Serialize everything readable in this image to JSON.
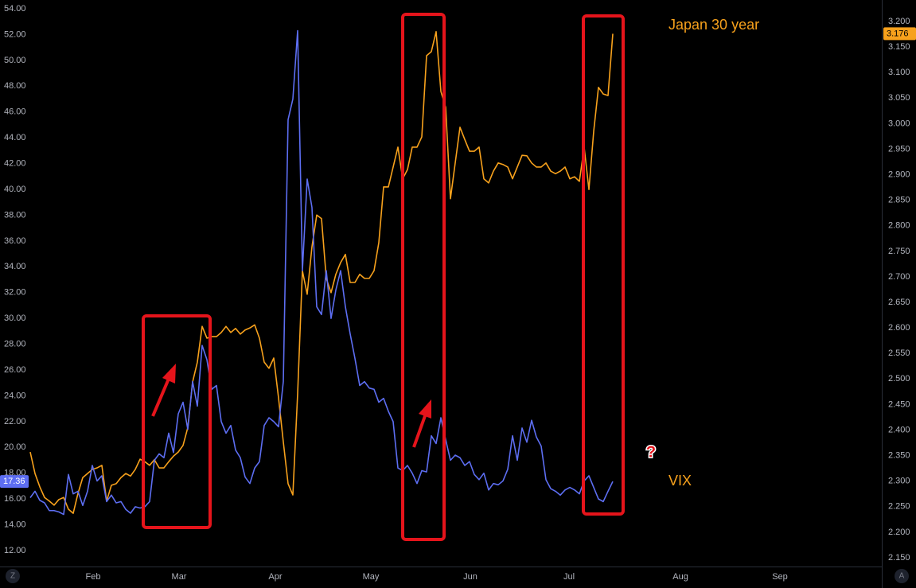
{
  "chart_data": {
    "type": "line",
    "x": [
      0,
      1,
      2,
      3,
      4,
      5,
      6,
      7,
      8,
      9,
      10,
      11,
      12,
      13,
      14,
      15,
      16,
      17,
      18,
      19,
      20,
      21,
      22,
      23,
      24,
      25,
      26,
      27,
      28,
      29,
      30,
      31,
      32,
      33,
      34,
      35,
      36,
      37,
      38,
      39,
      40,
      41,
      42,
      43,
      44,
      45,
      46,
      47,
      48,
      49,
      50,
      51,
      52,
      53,
      54,
      55,
      56,
      57,
      58,
      59,
      60,
      61,
      62,
      63,
      64,
      65,
      66,
      67,
      68,
      69,
      70,
      71,
      72,
      73,
      74,
      75,
      76,
      77,
      78,
      79,
      80,
      81,
      82,
      83,
      84,
      85,
      86,
      87,
      88,
      89,
      90,
      91,
      92,
      93,
      94,
      95,
      96,
      97,
      98,
      99,
      100,
      101,
      102,
      103,
      104,
      105,
      106,
      107,
      108,
      109,
      110,
      111,
      112,
      113,
      114,
      115,
      116,
      117,
      118,
      119,
      120,
      121,
      122
    ],
    "xlim": [
      -6.33,
      178.33
    ],
    "xticks": [
      {
        "value": 13.17,
        "label": "Feb"
      },
      {
        "value": 31.17,
        "label": "Mar"
      },
      {
        "value": 51.33,
        "label": "Apr"
      },
      {
        "value": 71.33,
        "label": "May"
      },
      {
        "value": 92.17,
        "label": "Jun"
      },
      {
        "value": 112.83,
        "label": "Jul"
      },
      {
        "value": 136.17,
        "label": "Aug"
      },
      {
        "value": 157,
        "label": "Sep"
      }
    ],
    "ylim": [
      12,
      54
    ],
    "yticks": [
      {
        "value": 12,
        "label": "12.00"
      },
      {
        "value": 14,
        "label": "14.00"
      },
      {
        "value": 16,
        "label": "16.00"
      },
      {
        "value": 18,
        "label": "18.00"
      },
      {
        "value": 20,
        "label": "20.00"
      },
      {
        "value": 22,
        "label": "22.00"
      },
      {
        "value": 24,
        "label": "24.00"
      },
      {
        "value": 26,
        "label": "26.00"
      },
      {
        "value": 28,
        "label": "28.00"
      },
      {
        "value": 30,
        "label": "30.00"
      },
      {
        "value": 32,
        "label": "32.00"
      },
      {
        "value": 34,
        "label": "34.00"
      },
      {
        "value": 36,
        "label": "36.00"
      },
      {
        "value": 38,
        "label": "38.00"
      },
      {
        "value": 40,
        "label": "40.00"
      },
      {
        "value": 42,
        "label": "42.00"
      },
      {
        "value": 44,
        "label": "44.00"
      },
      {
        "value": 46,
        "label": "46.00"
      },
      {
        "value": 48,
        "label": "48.00"
      },
      {
        "value": 50,
        "label": "50.00"
      },
      {
        "value": 52,
        "label": "52.00"
      },
      {
        "value": 54,
        "label": "54.00"
      }
    ],
    "y2lim": [
      2.15,
      3.2
    ],
    "y2ticks": [
      {
        "value": 2.15,
        "label": "2.150"
      },
      {
        "value": 2.2,
        "label": "2.200"
      },
      {
        "value": 2.25,
        "label": "2.250"
      },
      {
        "value": 2.3,
        "label": "2.300"
      },
      {
        "value": 2.35,
        "label": "2.350"
      },
      {
        "value": 2.4,
        "label": "2.400"
      },
      {
        "value": 2.45,
        "label": "2.450"
      },
      {
        "value": 2.5,
        "label": "2.500"
      },
      {
        "value": 2.55,
        "label": "2.550"
      },
      {
        "value": 2.6,
        "label": "2.600"
      },
      {
        "value": 2.65,
        "label": "2.650"
      },
      {
        "value": 2.7,
        "label": "2.700"
      },
      {
        "value": 2.75,
        "label": "2.750"
      },
      {
        "value": 2.8,
        "label": "2.800"
      },
      {
        "value": 2.85,
        "label": "2.850"
      },
      {
        "value": 2.9,
        "label": "2.900"
      },
      {
        "value": 2.95,
        "label": "2.950"
      },
      {
        "value": 3.0,
        "label": "3.000"
      },
      {
        "value": 3.05,
        "label": "3.050"
      },
      {
        "value": 3.1,
        "label": "3.100"
      },
      {
        "value": 3.15,
        "label": "3.150"
      },
      {
        "value": 3.2,
        "label": "3.200"
      }
    ],
    "grid": false,
    "series": [
      {
        "name": "VIX",
        "color": "#5d6ef2",
        "values": [
          16.1,
          16.6,
          15.9,
          15.7,
          15.1,
          15.1,
          15.0,
          14.8,
          17.9,
          16.4,
          16.6,
          15.5,
          16.6,
          18.6,
          17.4,
          17.8,
          15.8,
          16.3,
          15.7,
          15.8,
          15.2,
          14.9,
          15.4,
          15.3,
          15.4,
          15.8,
          19.0,
          19.5,
          19.2,
          21.1,
          19.6,
          22.6,
          23.5,
          21.4,
          25.1,
          23.2,
          27.9,
          26.8,
          24.5,
          24.8,
          22.0,
          21.1,
          21.7,
          19.8,
          19.2,
          17.7,
          17.2,
          18.4,
          18.9,
          21.7,
          22.3,
          22.0,
          21.6,
          25.1,
          45.4,
          47.0,
          52.3,
          33.7,
          40.8,
          38.6,
          30.9,
          30.3,
          33.7,
          30.0,
          32.2,
          33.7,
          30.9,
          28.8,
          26.9,
          24.8,
          25.1,
          24.6,
          24.5,
          23.5,
          23.8,
          22.8,
          22.0,
          18.4,
          18.2,
          18.6,
          18.0,
          17.2,
          18.2,
          18.1,
          20.9,
          20.3,
          22.3,
          20.6,
          19.0,
          19.4,
          19.2,
          18.6,
          18.9,
          17.9,
          17.5,
          18.0,
          16.7,
          17.2,
          17.1,
          17.4,
          18.3,
          20.9,
          19.0,
          21.5,
          20.4,
          22.1,
          20.8,
          20.1,
          17.5,
          16.8,
          16.6,
          16.3,
          16.7,
          16.9,
          16.7,
          16.4,
          17.4,
          17.8,
          16.9,
          16.0,
          15.8,
          16.6,
          17.36
        ]
      },
      {
        "name": "Japan 30 year",
        "color": "#f7a11c",
        "axis": "y2",
        "values": [
          2.357,
          2.315,
          2.289,
          2.268,
          2.261,
          2.253,
          2.264,
          2.268,
          2.245,
          2.237,
          2.276,
          2.307,
          2.315,
          2.323,
          2.326,
          2.331,
          2.261,
          2.292,
          2.295,
          2.307,
          2.315,
          2.31,
          2.323,
          2.343,
          2.338,
          2.331,
          2.342,
          2.326,
          2.326,
          2.338,
          2.349,
          2.357,
          2.37,
          2.405,
          2.494,
          2.533,
          2.603,
          2.58,
          2.583,
          2.583,
          2.591,
          2.603,
          2.591,
          2.599,
          2.588,
          2.596,
          2.6,
          2.606,
          2.58,
          2.533,
          2.521,
          2.541,
          2.463,
          2.377,
          2.295,
          2.273,
          2.471,
          2.712,
          2.666,
          2.759,
          2.821,
          2.814,
          2.697,
          2.669,
          2.705,
          2.728,
          2.744,
          2.689,
          2.689,
          2.705,
          2.697,
          2.697,
          2.712,
          2.767,
          2.876,
          2.876,
          2.915,
          2.954,
          2.892,
          2.91,
          2.954,
          2.954,
          2.974,
          3.133,
          3.141,
          3.18,
          3.063,
          3.032,
          2.853,
          2.923,
          2.993,
          2.969,
          2.946,
          2.946,
          2.954,
          2.892,
          2.884,
          2.907,
          2.923,
          2.92,
          2.915,
          2.892,
          2.915,
          2.938,
          2.937,
          2.923,
          2.915,
          2.915,
          2.923,
          2.907,
          2.902,
          2.907,
          2.915,
          2.892,
          2.896,
          2.887,
          2.954,
          2.871,
          2.985,
          3.071,
          3.058,
          3.055,
          3.176
        ]
      }
    ],
    "annotations": [
      "?"
    ]
  },
  "ui": {
    "left_button": "Z",
    "right_button": "A"
  }
}
